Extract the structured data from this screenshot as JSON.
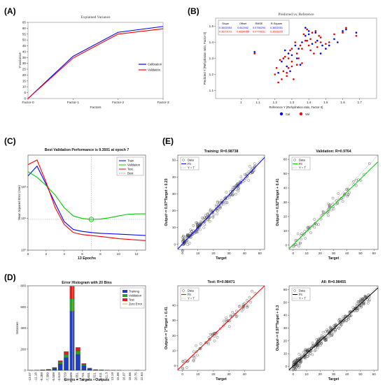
{
  "panels": {
    "A": "(A)",
    "B": "(B)",
    "C": "(C)",
    "D": "(D)",
    "E": "(E)"
  },
  "chart_data": [
    {
      "id": "A",
      "type": "line",
      "title": "Explained Variance",
      "xlabel": "Factors",
      "ylabel": "Y-variance",
      "categories": [
        "Factor-0",
        "Factor-1",
        "Factor-2",
        "Factor-3"
      ],
      "ylim": [
        0,
        65
      ],
      "yticks": [
        0,
        5,
        10,
        15,
        20,
        25,
        30,
        35,
        40,
        45,
        50,
        55,
        60,
        65
      ],
      "legend_position": "right",
      "series": [
        {
          "name": "Calibration",
          "color": "#0000ff",
          "values": [
            0,
            36,
            56.5,
            61.5
          ]
        },
        {
          "name": "Validation",
          "color": "#ff0000",
          "values": [
            0,
            34.5,
            55,
            59.5
          ]
        }
      ]
    },
    {
      "id": "B",
      "type": "scatter",
      "title": "Predicted vs. Reference",
      "xlabel": "Reference Y (Rehydration ratio, Factor-3)",
      "ylabel": "Predicted Y (Rehydration ratio, Factor-3)",
      "xlim": [
        0.85,
        1.8
      ],
      "ylim": [
        1.05,
        1.55
      ],
      "xticks": [
        "1",
        "1.1",
        "1.2",
        "1.3",
        "1.4",
        "1.5",
        "1.6",
        "1.7"
      ],
      "yticks": [
        "1.1",
        "1.2",
        "1.3",
        "1.4",
        "1.5"
      ],
      "table": {
        "headers": [
          "Slope",
          "Offset",
          "RMSE",
          "R-Square"
        ],
        "rows": [
          {
            "color": "#0000ff",
            "cells": [
              "0.3602053",
              "0.842942",
              "0.0756294",
              "0.3602051"
            ]
          },
          {
            "color": "#ff0000",
            "cells": [
              "0.3629103",
              "0.8654055",
              "0.0778831",
              "0.3509205"
            ]
          }
        ]
      },
      "legend": [
        {
          "name": "Cal",
          "color": "#0000ff"
        },
        {
          "name": "Val",
          "color": "#ff0000"
        }
      ],
      "points_cal": [
        [
          1.08,
          1.34
        ],
        [
          1.22,
          1.21
        ],
        [
          1.24,
          1.28
        ],
        [
          1.25,
          1.3
        ],
        [
          1.27,
          1.25
        ],
        [
          1.28,
          1.33
        ],
        [
          1.3,
          1.32
        ],
        [
          1.32,
          1.38
        ],
        [
          1.34,
          1.36
        ],
        [
          1.36,
          1.4
        ],
        [
          1.38,
          1.44
        ],
        [
          1.4,
          1.45
        ],
        [
          1.42,
          1.39
        ],
        [
          1.45,
          1.41
        ],
        [
          1.47,
          1.33
        ],
        [
          1.5,
          1.36
        ],
        [
          1.52,
          1.38
        ],
        [
          1.55,
          1.42
        ],
        [
          1.6,
          1.47
        ],
        [
          1.62,
          1.48
        ],
        [
          1.68,
          1.46
        ],
        [
          1.33,
          1.3
        ],
        [
          1.29,
          1.22
        ],
        [
          1.38,
          1.49
        ],
        [
          1.4,
          1.47
        ],
        [
          1.44,
          1.46
        ],
        [
          1.26,
          1.35
        ],
        [
          1.35,
          1.26
        ],
        [
          1.48,
          1.38
        ],
        [
          1.57,
          1.4
        ]
      ],
      "points_val": [
        [
          1.08,
          1.33
        ],
        [
          1.2,
          1.2
        ],
        [
          1.21,
          1.24
        ],
        [
          1.23,
          1.29
        ],
        [
          1.24,
          1.17
        ],
        [
          1.25,
          1.22
        ],
        [
          1.26,
          1.31
        ],
        [
          1.27,
          1.21
        ],
        [
          1.28,
          1.3
        ],
        [
          1.29,
          1.35
        ],
        [
          1.3,
          1.28
        ],
        [
          1.31,
          1.17
        ],
        [
          1.32,
          1.4
        ],
        [
          1.33,
          1.33
        ],
        [
          1.34,
          1.3
        ],
        [
          1.35,
          1.38
        ],
        [
          1.36,
          1.27
        ],
        [
          1.37,
          1.45
        ],
        [
          1.38,
          1.41
        ],
        [
          1.39,
          1.48
        ],
        [
          1.4,
          1.38
        ],
        [
          1.41,
          1.42
        ],
        [
          1.42,
          1.46
        ],
        [
          1.43,
          1.33
        ],
        [
          1.44,
          1.47
        ],
        [
          1.45,
          1.37
        ],
        [
          1.46,
          1.44
        ],
        [
          1.47,
          1.4
        ],
        [
          1.5,
          1.39
        ],
        [
          1.52,
          1.4
        ],
        [
          1.55,
          1.45
        ],
        [
          1.6,
          1.46
        ],
        [
          1.62,
          1.49
        ],
        [
          1.68,
          1.44
        ],
        [
          1.22,
          1.15
        ],
        [
          1.25,
          1.3
        ],
        [
          1.28,
          1.24
        ],
        [
          1.3,
          1.36
        ],
        [
          1.33,
          1.26
        ],
        [
          1.36,
          1.36
        ],
        [
          1.39,
          1.41
        ],
        [
          1.41,
          1.35
        ],
        [
          1.44,
          1.4
        ],
        [
          1.47,
          1.43
        ],
        [
          1.27,
          1.19
        ],
        [
          1.3,
          1.25
        ]
      ]
    },
    {
      "id": "C",
      "type": "line",
      "title": "Best Validation Performance is 9.3501 at epoch 7",
      "xlabel": "13 Epochs",
      "ylabel": "Mean Squared Error (mse)",
      "xlim": [
        0,
        13
      ],
      "xticks": [
        0,
        2,
        4,
        6,
        8,
        10,
        12
      ],
      "yscale": "log",
      "ylim": [
        1,
        1000
      ],
      "yticks": [
        "10⁰",
        "10¹",
        "10²"
      ],
      "legend_position": "top-right",
      "best_point": {
        "x": 7,
        "y": 9.3501
      },
      "series": [
        {
          "name": "Train",
          "color": "#0000ff",
          "x": [
            0,
            1,
            2,
            3,
            4,
            5,
            6,
            7,
            8,
            9,
            10,
            11,
            12,
            13
          ],
          "y": [
            220,
            450,
            120,
            30,
            8,
            4.5,
            3.9,
            3.6,
            3.4,
            3.3,
            3.2,
            3.1,
            3,
            2.9
          ]
        },
        {
          "name": "Validation",
          "color": "#00cc00",
          "x": [
            0,
            1,
            2,
            3,
            4,
            5,
            6,
            7,
            8,
            9,
            10,
            11,
            12,
            13
          ],
          "y": [
            300,
            200,
            110,
            55,
            22,
            12,
            10,
            9.35,
            9.6,
            10.5,
            12,
            13.5,
            14,
            14
          ]
        },
        {
          "name": "Test",
          "color": "#ff0000",
          "x": [
            0,
            1,
            2,
            3,
            4,
            5,
            6,
            7,
            8,
            9,
            10,
            11,
            12,
            13
          ],
          "y": [
            500,
            700,
            140,
            22,
            6.5,
            3.6,
            3.1,
            2.9,
            2.7,
            2.5,
            2.3,
            2.2,
            2.1,
            2.0
          ]
        },
        {
          "name": "Best",
          "color": "#999999",
          "x": [],
          "y": []
        }
      ]
    },
    {
      "id": "D",
      "type": "bar",
      "title": "Error Histogram with 20 Bins",
      "xlabel": "Errors = Targets - Outputs",
      "ylabel": "Instances",
      "categories": [
        "-13.07",
        "-11.18",
        "-9.289",
        "-7.399",
        "-5.509",
        "-3.619",
        "-1.729",
        "0.1609",
        "1.851",
        "3.741",
        "5.631",
        "7.521",
        "9.411",
        "11.3",
        "13.19",
        "15.08",
        "16.97",
        "18.86",
        "20.75",
        "22.64"
      ],
      "ylim": [
        0,
        800
      ],
      "zero_error_label": "Zero Error",
      "legend_position": "top-right",
      "series": [
        {
          "name": "Training",
          "color": "#1f3fc0",
          "values": [
            1,
            2,
            3,
            6,
            18,
            62,
            120,
            560,
            150,
            45,
            14,
            5,
            3,
            2,
            1,
            1,
            0,
            0,
            1,
            0
          ]
        },
        {
          "name": "Validation",
          "color": "#2aa02a",
          "values": [
            0,
            1,
            1,
            2,
            5,
            15,
            30,
            120,
            35,
            10,
            4,
            1,
            1,
            0,
            0,
            0,
            0,
            0,
            0,
            0
          ]
        },
        {
          "name": "Test",
          "color": "#e02020",
          "values": [
            0,
            0,
            1,
            2,
            4,
            14,
            28,
            115,
            32,
            10,
            3,
            1,
            0,
            1,
            0,
            0,
            0,
            0,
            0,
            0
          ]
        }
      ]
    },
    {
      "id": "E1",
      "type": "scatter",
      "title": "Training: R=0.98738",
      "xlabel": "Target",
      "ylabel": "Output~= 0.97*Target + 0.23",
      "xlim": [
        -3,
        53
      ],
      "ylim": [
        -3,
        53
      ],
      "xticks": [
        0,
        10,
        20,
        30,
        40,
        50
      ],
      "yticks": [
        0,
        10,
        20,
        30,
        40,
        50
      ],
      "fit": {
        "slope": 0.97,
        "intercept": 0.23,
        "color": "#0000ff"
      },
      "legend": [
        "Data",
        "Fit",
        "Y = T"
      ],
      "seed": 11,
      "n": 220,
      "noise": 2.2
    },
    {
      "id": "E2",
      "type": "scatter",
      "title": "Validation: R=0.9764",
      "xlabel": "Target",
      "ylabel": "Output~= 0.92*Target + 0.41",
      "xlim": [
        -3,
        63
      ],
      "ylim": [
        -3,
        63
      ],
      "xticks": [
        0,
        10,
        20,
        30,
        40,
        50,
        60
      ],
      "yticks": [
        0,
        10,
        20,
        30,
        40,
        50,
        60
      ],
      "fit": {
        "slope": 0.92,
        "intercept": 0.41,
        "color": "#00cc00"
      },
      "legend": [
        "Data",
        "Fit",
        "Y = T"
      ],
      "seed": 23,
      "n": 80,
      "noise": 2.8
    },
    {
      "id": "E3",
      "type": "scatter",
      "title": "Test: R=0.98471",
      "xlabel": "Target",
      "ylabel": "Output~= 1*Target + 0.41",
      "xlim": [
        -3,
        53
      ],
      "ylim": [
        -3,
        53
      ],
      "xticks": [
        0,
        10,
        20,
        30,
        40
      ],
      "yticks": [
        0,
        10,
        20,
        30,
        40
      ],
      "fit": {
        "slope": 1.0,
        "intercept": 0.41,
        "color": "#ff0000"
      },
      "legend": [
        "Data",
        "Fit",
        "Y = T"
      ],
      "seed": 37,
      "n": 80,
      "noise": 2.4
    },
    {
      "id": "E4",
      "type": "scatter",
      "title": "All: R=0.98455",
      "xlabel": "Target",
      "ylabel": "Output~= 0.97*Target + 0.3",
      "xlim": [
        -3,
        63
      ],
      "ylim": [
        -3,
        63
      ],
      "xticks": [
        0,
        10,
        20,
        30,
        40,
        50,
        60
      ],
      "yticks": [
        0,
        10,
        20,
        30,
        40,
        50,
        60
      ],
      "fit": {
        "slope": 0.97,
        "intercept": 0.3,
        "color": "#000000"
      },
      "legend": [
        "Data",
        "Fit",
        "Y = T"
      ],
      "seed": 51,
      "n": 320,
      "noise": 2.4
    }
  ]
}
